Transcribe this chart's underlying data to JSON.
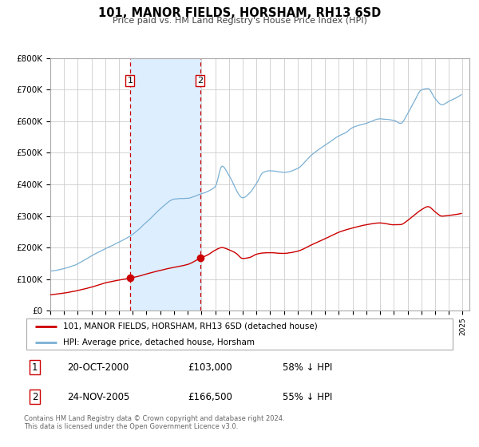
{
  "title": "101, MANOR FIELDS, HORSHAM, RH13 6SD",
  "subtitle": "Price paid vs. HM Land Registry's House Price Index (HPI)",
  "legend_line1": "101, MANOR FIELDS, HORSHAM, RH13 6SD (detached house)",
  "legend_line2": "HPI: Average price, detached house, Horsham",
  "transaction1_date": "20-OCT-2000",
  "transaction1_price": "£103,000",
  "transaction1_hpi": "58% ↓ HPI",
  "transaction1_year": 2000.8,
  "transaction1_value": 103000,
  "transaction2_date": "24-NOV-2005",
  "transaction2_price": "£166,500",
  "transaction2_hpi": "55% ↓ HPI",
  "transaction2_year": 2005.9,
  "transaction2_value": 166500,
  "shade_start": 2000.8,
  "shade_end": 2005.9,
  "ylim_min": 0,
  "ylim_max": 800000,
  "xlim_min": 1995.0,
  "xlim_max": 2025.5,
  "red_color": "#cc0000",
  "blue_color": "#7ab0d4",
  "shade_color": "#ddeeff",
  "vline_color": "#cc0000",
  "grid_color": "#cccccc",
  "footer_text": "Contains HM Land Registry data © Crown copyright and database right 2024.\nThis data is licensed under the Open Government Licence v3.0."
}
